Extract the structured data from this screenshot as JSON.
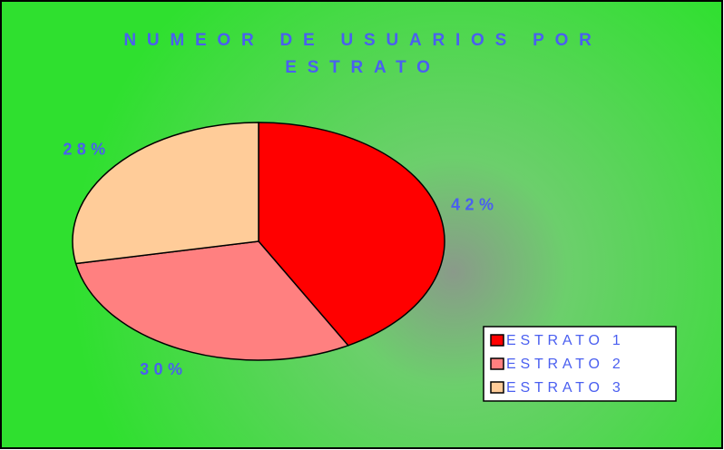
{
  "chart_data": {
    "type": "pie",
    "title": "NUMEOR DE USUARIOS POR ESTRATO",
    "categories": [
      "ESTRATO 1",
      "ESTRATO 2",
      "ESTRATO 3"
    ],
    "values": [
      42,
      30,
      28
    ],
    "value_labels": [
      "42%",
      "30%",
      "28%"
    ],
    "colors": [
      "#ff0000",
      "#ff8080",
      "#ffcc99"
    ],
    "legend": "bottom-right"
  }
}
